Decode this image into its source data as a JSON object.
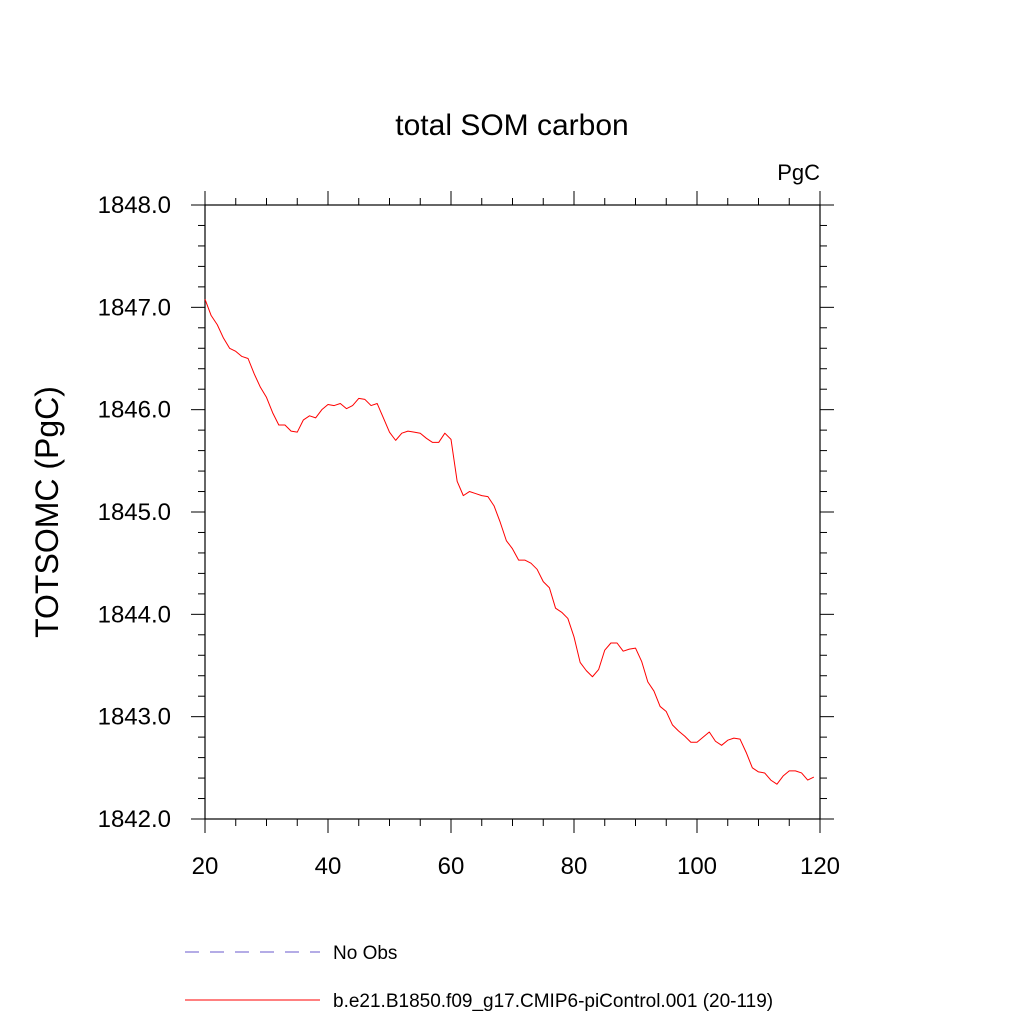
{
  "chart_data": {
    "type": "line",
    "title": "total SOM carbon",
    "units_label": "PgC",
    "ylabel": "TOTSOMC  (PgC)",
    "xlabel": "",
    "xlim": [
      20,
      120
    ],
    "ylim": [
      1842.0,
      1848.0
    ],
    "x_ticks": [
      20,
      40,
      60,
      80,
      100,
      120
    ],
    "x_tick_labels": [
      "20",
      "40",
      "60",
      "80",
      "100",
      "120"
    ],
    "y_ticks": [
      1842.0,
      1843.0,
      1844.0,
      1845.0,
      1846.0,
      1847.0,
      1848.0
    ],
    "y_tick_labels": [
      "1842.0",
      "1843.0",
      "1844.0",
      "1845.0",
      "1846.0",
      "1847.0",
      "1848.0"
    ],
    "grid": false,
    "legend_position": "bottom",
    "legend": [
      {
        "label": "No Obs",
        "color": "#6a5acd",
        "style": "dashed"
      },
      {
        "label": "b.e21.B1850.f09_g17.CMIP6-piControl.001 (20-119)",
        "color": "#ff0000",
        "style": "solid"
      }
    ],
    "series": [
      {
        "name": "b.e21.B1850.f09_g17.CMIP6-piControl.001 (20-119)",
        "color": "#ff0000",
        "x": [
          20,
          21,
          22,
          23,
          24,
          25,
          26,
          27,
          28,
          29,
          30,
          31,
          32,
          33,
          34,
          35,
          36,
          37,
          38,
          39,
          40,
          41,
          42,
          43,
          44,
          45,
          46,
          47,
          48,
          49,
          50,
          51,
          52,
          53,
          54,
          55,
          56,
          57,
          58,
          59,
          60,
          61,
          62,
          63,
          64,
          65,
          66,
          67,
          68,
          69,
          70,
          71,
          72,
          73,
          74,
          75,
          76,
          77,
          78,
          79,
          80,
          81,
          82,
          83,
          84,
          85,
          86,
          87,
          88,
          89,
          90,
          91,
          92,
          93,
          94,
          95,
          96,
          97,
          98,
          99,
          100,
          101,
          102,
          103,
          104,
          105,
          106,
          107,
          108,
          109,
          110,
          111,
          112,
          113,
          114,
          115,
          116,
          117,
          118,
          119
        ],
        "values": [
          1847.08,
          1846.92,
          1846.83,
          1846.7,
          1846.6,
          1846.57,
          1846.52,
          1846.5,
          1846.35,
          1846.22,
          1846.12,
          1845.97,
          1845.85,
          1845.85,
          1845.79,
          1845.78,
          1845.9,
          1845.94,
          1845.92,
          1846.0,
          1846.05,
          1846.04,
          1846.06,
          1846.01,
          1846.04,
          1846.11,
          1846.1,
          1846.04,
          1846.06,
          1845.92,
          1845.78,
          1845.7,
          1845.77,
          1845.79,
          1845.78,
          1845.77,
          1845.72,
          1845.68,
          1845.68,
          1845.77,
          1845.71,
          1845.3,
          1845.16,
          1845.2,
          1845.18,
          1845.16,
          1845.15,
          1845.06,
          1844.9,
          1844.72,
          1844.64,
          1844.53,
          1844.53,
          1844.5,
          1844.44,
          1844.32,
          1844.26,
          1844.06,
          1844.02,
          1843.96,
          1843.78,
          1843.53,
          1843.45,
          1843.39,
          1843.46,
          1843.65,
          1843.72,
          1843.72,
          1843.64,
          1843.66,
          1843.67,
          1843.54,
          1843.34,
          1843.25,
          1843.1,
          1843.05,
          1842.92,
          1842.86,
          1842.81,
          1842.75,
          1842.75,
          1842.8,
          1842.85,
          1842.76,
          1842.72,
          1842.77,
          1842.79,
          1842.78,
          1842.65,
          1842.5,
          1842.46,
          1842.45,
          1842.38,
          1842.34,
          1842.42,
          1842.47,
          1842.47,
          1842.45,
          1842.38,
          1842.41
        ]
      }
    ]
  }
}
